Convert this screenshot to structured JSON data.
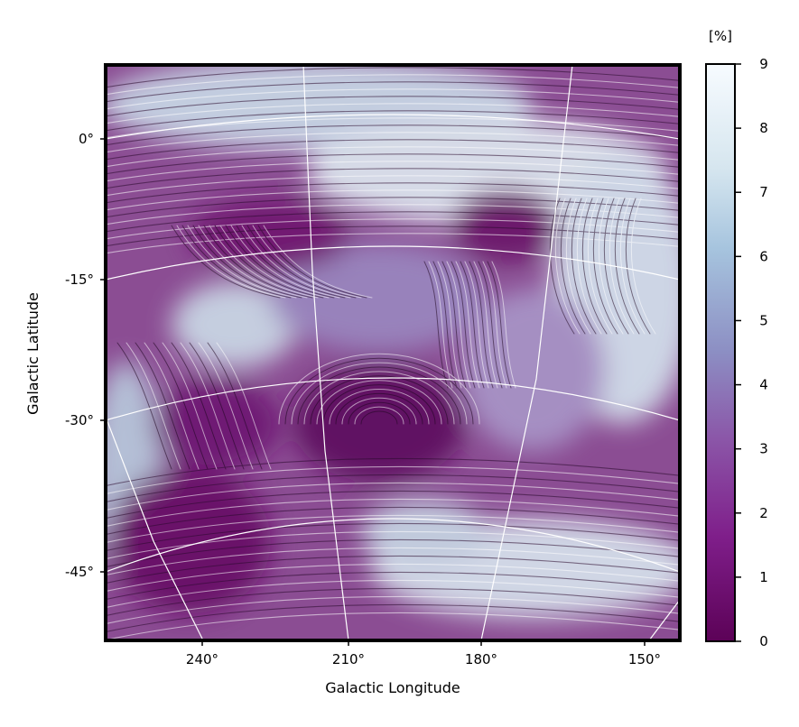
{
  "chart_data": {
    "type": "heatmap",
    "title": "",
    "xlabel": "Galactic Longitude",
    "ylabel": "Galactic Latitude",
    "projection": "orthographic-like sky map",
    "x_ticks": [
      "240°",
      "210°",
      "180°",
      "150°"
    ],
    "x_tick_values": [
      240,
      210,
      180,
      150
    ],
    "y_ticks": [
      "0°",
      "-15°",
      "-30°",
      "-45°"
    ],
    "y_tick_values": [
      0,
      -15,
      -30,
      -45
    ],
    "xlim": [
      262,
      142
    ],
    "ylim": [
      -54,
      7
    ],
    "overlay": "line integral convolution texture showing magnetic field orientation",
    "grid": true,
    "colorbar": {
      "label": "[%]",
      "range": [
        0,
        9
      ],
      "ticks": [
        "0",
        "1",
        "2",
        "3",
        "4",
        "5",
        "6",
        "7",
        "8",
        "9"
      ],
      "colormap": [
        "#5c0257",
        "#7f1e8a",
        "#8b56a8",
        "#8c8ec3",
        "#a6c4de",
        "#d6e6ef",
        "#f7fbff"
      ]
    }
  },
  "colors": {
    "low": "#70136c",
    "mid": "#8d8dc1",
    "high": "#dfe8ef",
    "frame": "#000000",
    "grid": "#ffffff"
  }
}
